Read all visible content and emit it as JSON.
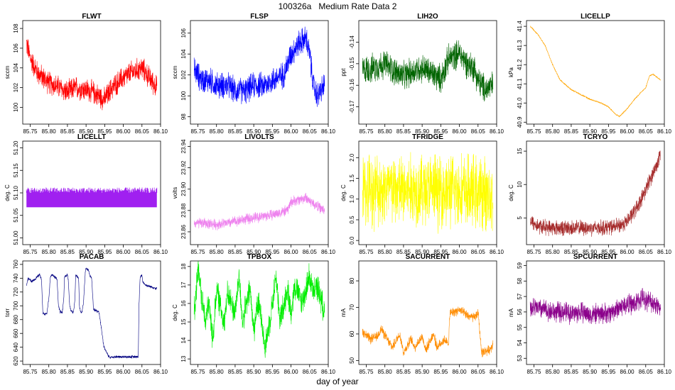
{
  "page": {
    "title": "100326a   Medium Rate Data 2",
    "xlabel": "day of year"
  },
  "chart_data": [
    {
      "type": "line",
      "title": "FLWT",
      "ylabel": "sccm",
      "color": "#ff0000",
      "xlim": [
        85.73,
        86.1
      ],
      "ylim": [
        98.3,
        108.8
      ],
      "xticks": [
        "85.75",
        "85.80",
        "85.85",
        "85.90",
        "85.95",
        "86.00",
        "86.05",
        "86.10"
      ],
      "yticks": [
        "100",
        "102",
        "104",
        "106",
        "108"
      ],
      "x": [
        85.74,
        85.75,
        85.77,
        85.8,
        85.83,
        85.85,
        85.87,
        85.9,
        85.92,
        85.95,
        85.97,
        86.0,
        86.02,
        86.05,
        86.07,
        86.09
      ],
      "y": [
        106.5,
        105,
        103.5,
        102.5,
        102,
        101.5,
        102,
        101.8,
        101.5,
        100.8,
        102,
        103,
        103.5,
        104,
        103,
        102
      ],
      "noise": 1.4
    },
    {
      "type": "line",
      "title": "FLSP",
      "ylabel": "sccm",
      "color": "#0000ff",
      "xlim": [
        85.73,
        86.1
      ],
      "ylim": [
        97.3,
        107.2
      ],
      "xticks": [
        "85.75",
        "85.80",
        "85.85",
        "85.90",
        "85.95",
        "86.00",
        "86.05",
        "86.10"
      ],
      "yticks": [
        "98",
        "100",
        "102",
        "104",
        "106"
      ],
      "x": [
        85.74,
        85.76,
        85.78,
        85.8,
        85.83,
        85.85,
        85.88,
        85.9,
        85.93,
        85.95,
        85.98,
        86.0,
        86.02,
        86.04,
        86.05,
        86.06,
        86.07,
        86.09
      ],
      "y": [
        102.5,
        101.5,
        101.5,
        101,
        101,
        100.5,
        100.5,
        101,
        101,
        101.5,
        102,
        104,
        105,
        105.5,
        104,
        101,
        100,
        101
      ],
      "noise": 1.5
    },
    {
      "type": "line",
      "title": "LIH2O",
      "ylabel": "ppt",
      "color": "#006400",
      "xlim": [
        85.73,
        86.1
      ],
      "ylim": [
        -0.178,
        -0.13
      ],
      "xticks": [
        "85.75",
        "85.80",
        "85.85",
        "85.90",
        "85.95",
        "86.00",
        "86.05",
        "86.10"
      ],
      "yticks": [
        "-0.17",
        "-0.16",
        "-0.15",
        "-0.14"
      ],
      "x": [
        85.74,
        85.77,
        85.8,
        85.83,
        85.85,
        85.88,
        85.9,
        85.93,
        85.95,
        85.97,
        86.0,
        86.02,
        86.04,
        86.05,
        86.07,
        86.09
      ],
      "y": [
        -0.153,
        -0.152,
        -0.15,
        -0.154,
        -0.156,
        -0.153,
        -0.152,
        -0.155,
        -0.157,
        -0.148,
        -0.145,
        -0.15,
        -0.152,
        -0.158,
        -0.162,
        -0.16
      ],
      "noise": 0.008
    },
    {
      "type": "line",
      "title": "LICELLP",
      "ylabel": "kPa",
      "color": "#ffa500",
      "xlim": [
        85.73,
        86.1
      ],
      "ylim": [
        40.89,
        41.43
      ],
      "xticks": [
        "85.75",
        "85.80",
        "85.85",
        "85.90",
        "85.95",
        "86.00",
        "86.05",
        "86.10"
      ],
      "yticks": [
        "40.9",
        "41.0",
        "41.1",
        "41.2",
        "41.3",
        "41.4"
      ],
      "x": [
        85.74,
        85.76,
        85.78,
        85.8,
        85.82,
        85.85,
        85.88,
        85.9,
        85.93,
        85.95,
        85.97,
        85.98,
        86.0,
        86.02,
        86.05,
        86.06,
        86.07,
        86.09
      ],
      "y": [
        41.4,
        41.36,
        41.3,
        41.2,
        41.12,
        41.07,
        41.04,
        41.02,
        41.0,
        40.98,
        40.94,
        40.93,
        40.97,
        41.02,
        41.08,
        41.14,
        41.15,
        41.12
      ],
      "noise": 0.004
    },
    {
      "type": "band",
      "title": "LICELLT",
      "ylabel": "deg. C",
      "color": "#a020f0",
      "xlim": [
        85.73,
        86.1
      ],
      "ylim": [
        50.985,
        51.215
      ],
      "xticks": [
        "85.75",
        "85.80",
        "85.85",
        "85.90",
        "85.95",
        "86.00",
        "86.05",
        "86.10"
      ],
      "yticks": [
        "51.00",
        "51.05",
        "51.10",
        "51.15",
        "51.20"
      ],
      "x": [
        85.74,
        86.09
      ],
      "y": [
        51.068,
        51.068
      ],
      "ytop": [
        51.1,
        51.1
      ],
      "noise": 0.012
    },
    {
      "type": "line",
      "title": "LIVOLTS",
      "ylabel": "volts",
      "color": "#ee82ee",
      "xlim": [
        85.73,
        86.1
      ],
      "ylim": [
        23.848,
        23.945
      ],
      "xticks": [
        "85.75",
        "85.80",
        "85.85",
        "85.90",
        "85.95",
        "86.00",
        "86.05",
        "86.10"
      ],
      "yticks": [
        "23.86",
        "23.88",
        "23.90",
        "23.92",
        "23.94"
      ],
      "x": [
        85.74,
        85.77,
        85.8,
        85.83,
        85.85,
        85.88,
        85.9,
        85.93,
        85.95,
        85.97,
        85.99,
        86.0,
        86.02,
        86.04,
        86.05,
        86.07,
        86.09
      ],
      "y": [
        23.868,
        23.868,
        23.867,
        23.868,
        23.87,
        23.872,
        23.873,
        23.875,
        23.876,
        23.878,
        23.88,
        23.888,
        23.89,
        23.892,
        23.889,
        23.884,
        23.88
      ],
      "noise": 0.006
    },
    {
      "type": "line",
      "title": "TFRIDGE",
      "ylabel": "deg. C",
      "color": "#ffff00",
      "xlim": [
        85.73,
        86.1
      ],
      "ylim": [
        -0.1,
        2.4
      ],
      "xticks": [
        "85.75",
        "85.80",
        "85.85",
        "85.90",
        "85.95",
        "86.00",
        "86.05",
        "86.10"
      ],
      "yticks": [
        "0.0",
        "0.5",
        "1.0",
        "1.5",
        "2.0"
      ],
      "x": [
        85.74,
        85.8,
        85.85,
        85.9,
        85.95,
        86.0,
        86.05,
        86.09
      ],
      "y": [
        1.2,
        1.25,
        1.2,
        1.25,
        1.2,
        1.2,
        1.15,
        1.1
      ],
      "noise": 1.05
    },
    {
      "type": "line",
      "title": "TCRYO",
      "ylabel": "deg. C",
      "color": "#a52a2a",
      "xlim": [
        85.73,
        86.1
      ],
      "ylim": [
        1.0,
        16.5
      ],
      "xticks": [
        "85.75",
        "85.80",
        "85.85",
        "85.90",
        "85.95",
        "86.00",
        "86.05",
        "86.10"
      ],
      "yticks": [
        "5",
        "10",
        "15"
      ],
      "x": [
        85.74,
        85.76,
        85.8,
        85.85,
        85.9,
        85.95,
        85.98,
        86.0,
        86.02,
        86.04,
        86.06,
        86.08,
        86.09
      ],
      "y": [
        4.5,
        3.8,
        3.5,
        3.5,
        3.5,
        3.6,
        3.8,
        4.5,
        6,
        8,
        10.5,
        13,
        14.5
      ],
      "noise": 1.4
    },
    {
      "type": "line",
      "title": "PACAB",
      "ylabel": "torr",
      "color": "#000080",
      "xlim": [
        85.73,
        86.1
      ],
      "ylim": [
        615,
        765
      ],
      "xticks": [
        "85.75",
        "85.80",
        "85.85",
        "85.90",
        "85.95",
        "86.00",
        "86.05",
        "86.10"
      ],
      "yticks": [
        "620",
        "640",
        "660",
        "680",
        "700",
        "720",
        "740",
        "760"
      ],
      "x": [
        85.74,
        85.745,
        85.755,
        85.775,
        85.78,
        85.784,
        85.788,
        85.795,
        85.8,
        85.804,
        85.808,
        85.82,
        85.822,
        85.826,
        85.83,
        85.836,
        85.84,
        85.842,
        85.85,
        85.852,
        85.856,
        85.86,
        85.866,
        85.87,
        85.872,
        85.88,
        85.882,
        85.885,
        85.889,
        85.893,
        85.898,
        85.9,
        85.906,
        85.91,
        85.915,
        85.92,
        85.93,
        85.935,
        85.948,
        85.96,
        85.962,
        85.965,
        85.97,
        85.98,
        86.0,
        86.03,
        86.04,
        86.042,
        86.045,
        86.05,
        86.052,
        86.06,
        86.09
      ],
      "y": [
        730,
        740,
        735,
        745,
        740,
        690,
        688,
        690,
        710,
        742,
        745,
        740,
        738,
        700,
        692,
        690,
        708,
        742,
        745,
        738,
        700,
        692,
        690,
        708,
        745,
        740,
        700,
        692,
        690,
        705,
        750,
        755,
        752,
        745,
        740,
        695,
        692,
        690,
        640,
        627,
        627,
        625,
        626,
        626,
        626,
        626,
        626,
        700,
        740,
        745,
        735,
        730,
        725
      ],
      "noise": 2.5
    },
    {
      "type": "line",
      "title": "TPBOX",
      "ylabel": "deg. C",
      "color": "#00ee00",
      "xlim": [
        85.73,
        86.1
      ],
      "ylim": [
        12.7,
        18.3
      ],
      "xticks": [
        "85.75",
        "85.80",
        "85.85",
        "85.90",
        "85.95",
        "86.00",
        "86.05",
        "86.10"
      ],
      "yticks": [
        "13",
        "14",
        "15",
        "16",
        "17",
        "18"
      ],
      "x": [
        85.74,
        85.75,
        85.77,
        85.78,
        85.79,
        85.8,
        85.82,
        85.83,
        85.85,
        85.86,
        85.87,
        85.89,
        85.9,
        85.91,
        85.92,
        85.93,
        85.95,
        85.96,
        85.97,
        85.99,
        86.0,
        86.01,
        86.03,
        86.05,
        86.06,
        86.07,
        86.09
      ],
      "y": [
        15.5,
        17.8,
        15,
        16,
        14,
        16.8,
        15,
        16.5,
        15.5,
        17.5,
        15,
        16.8,
        14.5,
        16,
        15.5,
        13.5,
        16,
        17.5,
        15,
        16.8,
        15.5,
        17,
        16,
        17.5,
        16.5,
        17,
        15.5
      ],
      "noise": 0.9
    },
    {
      "type": "line",
      "title": "SACURRENT",
      "ylabel": "mA",
      "color": "#ff8c00",
      "xlim": [
        85.73,
        86.1
      ],
      "ylim": [
        48.5,
        87.5
      ],
      "xticks": [
        "85.75",
        "85.80",
        "85.85",
        "85.90",
        "85.95",
        "86.00",
        "86.05",
        "86.10"
      ],
      "yticks": [
        "50",
        "60",
        "70",
        "80"
      ],
      "x": [
        85.74,
        85.76,
        85.78,
        85.79,
        85.81,
        85.82,
        85.84,
        85.85,
        85.87,
        85.88,
        85.9,
        85.91,
        85.93,
        85.94,
        85.96,
        85.97,
        85.975,
        85.98,
        86.0,
        86.02,
        86.04,
        86.05,
        86.06,
        86.08,
        86.09
      ],
      "y": [
        61,
        58,
        59,
        62,
        57,
        55,
        60,
        53,
        58,
        55,
        59,
        54,
        60,
        55,
        58,
        56,
        68,
        68,
        69,
        67,
        66,
        68,
        53,
        54,
        56
      ],
      "noise": 2.2
    },
    {
      "type": "line",
      "title": "SPCURRENT",
      "ylabel": "mA",
      "color": "#8b008b",
      "xlim": [
        85.73,
        86.1
      ],
      "ylim": [
        52.6,
        59.3
      ],
      "xticks": [
        "85.75",
        "85.80",
        "85.85",
        "85.90",
        "85.95",
        "86.00",
        "86.05",
        "86.10"
      ],
      "yticks": [
        "53",
        "54",
        "55",
        "56",
        "57",
        "58",
        "59"
      ],
      "x": [
        85.74,
        85.77,
        85.8,
        85.83,
        85.85,
        85.88,
        85.9,
        85.93,
        85.95,
        85.98,
        86.0,
        86.02,
        86.04,
        86.06,
        86.08,
        86.09
      ],
      "y": [
        56.3,
        56.2,
        56.0,
        56.0,
        55.9,
        56.0,
        55.8,
        55.9,
        55.9,
        56.3,
        56.5,
        56.5,
        56.9,
        56.7,
        56.5,
        56.2
      ],
      "noise": 0.8
    }
  ]
}
